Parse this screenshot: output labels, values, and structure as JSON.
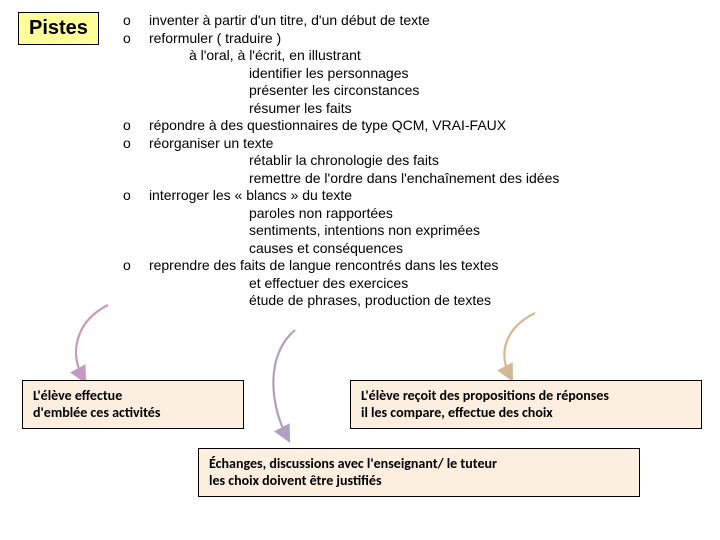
{
  "title": "Pistes",
  "list": {
    "items": [
      {
        "marker": "o",
        "text": "inventer à partir d'un titre, d'un début de texte",
        "subs": []
      },
      {
        "marker": "o",
        "text": "reformuler ( traduire )",
        "subs": [
          {
            "text": "à l'oral, à l'écrit, en illustrant",
            "level": 1
          },
          {
            "text": "identifier les personnages",
            "level": 2
          },
          {
            "text": "présenter les circonstances",
            "level": 2
          },
          {
            "text": "résumer les faits",
            "level": 2
          }
        ]
      },
      {
        "marker": "o",
        "text": "répondre à des questionnaires de type QCM, VRAI-FAUX",
        "subs": []
      },
      {
        "marker": "o",
        "text": "réorganiser un texte",
        "subs": [
          {
            "text": "rétablir la chronologie des faits",
            "level": 2
          },
          {
            "text": "remettre de l'ordre dans l'enchaînement des idées",
            "level": 2
          }
        ]
      },
      {
        "marker": "o",
        "text": "interroger les « blancs » du texte",
        "subs": [
          {
            "text": "paroles non rapportées",
            "level": 2
          },
          {
            "text": "sentiments, intentions non exprimées",
            "level": 2
          },
          {
            "text": "causes et conséquences",
            "level": 2
          }
        ]
      },
      {
        "marker": "o",
        "text": "reprendre des faits de langue rencontrés dans les textes",
        "subs": [
          {
            "text": "et effectuer des exercices",
            "level": 2
          },
          {
            "text": "étude de phrases, production de textes",
            "level": 2
          }
        ]
      }
    ]
  },
  "boxes": {
    "left": {
      "line1": "L'élève effectue",
      "line2": "d'emblée ces activités"
    },
    "right": {
      "line1": "L'élève reçoit des propositions de réponses",
      "line2": "il les compare, effectue des choix"
    },
    "bottom": {
      "line1": "Échanges, discussions avec l'enseignant/ le tuteur",
      "line2": "les choix doivent être justifiés"
    }
  },
  "styling": {
    "title_bg": "#ffff99",
    "box_bg": "#fcefe0",
    "arrow_left_color": "#c49ac4",
    "arrow_mid_color": "#b0a0c0",
    "arrow_right_color": "#d4b896",
    "font_main": "Arial",
    "font_box": "Calibri",
    "title_fontsize": 20,
    "body_fontsize": 14,
    "box_fontsize": 14
  }
}
